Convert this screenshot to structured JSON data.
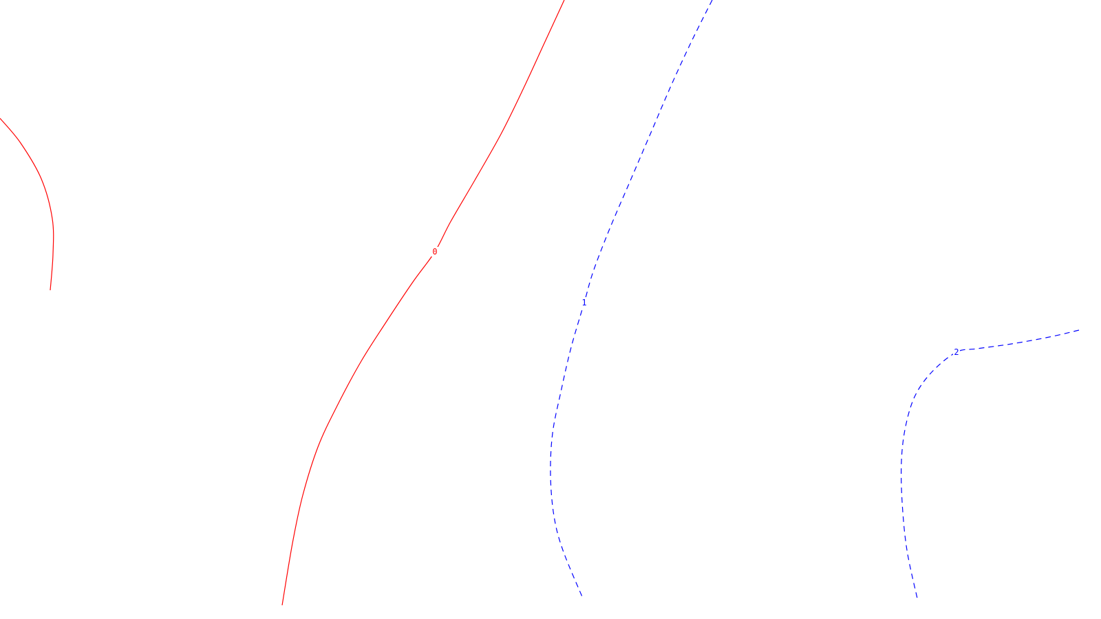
{
  "chart_data": {
    "type": "contour",
    "title": "",
    "xlabel": "",
    "ylabel": "",
    "grid": false,
    "legend": "none",
    "colors": {
      "background": "#ffffff",
      "level_0": "#ff0000",
      "level_positive": "#0000ff"
    },
    "contours": [
      {
        "level": "0",
        "color": "#ff0000",
        "dash": "solid",
        "label_at": [
          632,
          366
        ],
        "segments": [
          [
            [
              820,
              0
            ],
            [
              790,
              65
            ],
            [
              760,
              130
            ],
            [
              728,
              195
            ],
            [
              690,
              262
            ],
            [
              655,
              322
            ],
            [
              632,
              366
            ],
            [
              600,
              410
            ],
            [
              560,
              470
            ],
            [
              525,
              525
            ],
            [
              490,
              590
            ],
            [
              462,
              650
            ],
            [
              440,
              720
            ],
            [
              425,
              790
            ],
            [
              410,
              880
            ]
          ],
          [
            [
              0,
              172
            ],
            [
              30,
              208
            ],
            [
              60,
              260
            ],
            [
              76,
              318
            ],
            [
              77,
              370
            ],
            [
              73,
              422
            ]
          ]
        ]
      },
      {
        "level": "1",
        "color": "#0000ff",
        "dash": "dashed",
        "label_at": [
          849,
          440
        ],
        "segments": [
          [
            [
              1035,
              0
            ],
            [
              1005,
              60
            ],
            [
              975,
              125
            ],
            [
              945,
              195
            ],
            [
              915,
              265
            ],
            [
              885,
              335
            ],
            [
              862,
              395
            ],
            [
              849,
              440
            ],
            [
              830,
              505
            ],
            [
              815,
              570
            ],
            [
              803,
              630
            ],
            [
              800,
              690
            ],
            [
              805,
              750
            ],
            [
              818,
              800
            ],
            [
              847,
              870
            ]
          ]
        ]
      },
      {
        "level": "2",
        "color": "#0000ff",
        "dash": "dashed",
        "label_at": [
          1390,
          512
        ],
        "segments": [
          [
            [
              1568,
              480
            ],
            [
              1525,
              490
            ],
            [
              1470,
              500
            ],
            [
              1420,
              507
            ],
            [
              1390,
              512
            ],
            [
              1355,
              540
            ],
            [
              1330,
              575
            ],
            [
              1316,
              620
            ],
            [
              1310,
              670
            ],
            [
              1311,
              730
            ],
            [
              1318,
              800
            ],
            [
              1333,
              870
            ]
          ]
        ]
      }
    ]
  }
}
